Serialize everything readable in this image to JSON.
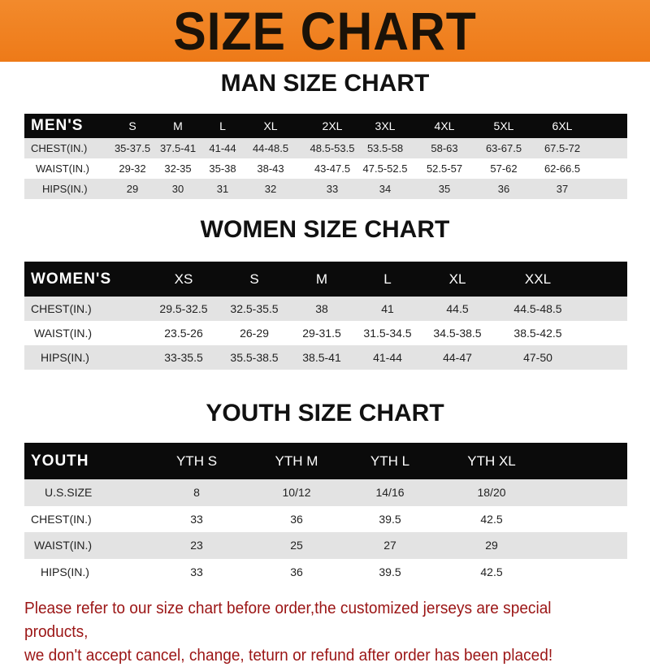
{
  "banner": {
    "title": "SIZE CHART",
    "color": "#ef801f"
  },
  "men": {
    "title": "MAN SIZE CHART",
    "header": "MEN'S",
    "sizes": [
      "S",
      "M",
      "L",
      "XL",
      "2XL",
      "3XL",
      "4XL",
      "5XL",
      "6XL"
    ],
    "rows": [
      {
        "label": "CHEST(IN.)",
        "values": [
          "35-37.5",
          "37.5-41",
          "41-44",
          "44-48.5",
          "48.5-53.5",
          "53.5-58",
          "58-63",
          "63-67.5",
          "67.5-72"
        ]
      },
      {
        "label": "WAIST(IN.)",
        "values": [
          "29-32",
          "32-35",
          "35-38",
          "38-43",
          "43-47.5",
          "47.5-52.5",
          "52.5-57",
          "57-62",
          "62-66.5"
        ]
      },
      {
        "label": "HIPS(IN.)",
        "values": [
          "29",
          "30",
          "31",
          "32",
          "33",
          "34",
          "35",
          "36",
          "37"
        ]
      }
    ]
  },
  "women": {
    "title": "WOMEN SIZE CHART",
    "header": "WOMEN'S",
    "sizes": [
      "XS",
      "S",
      "M",
      "L",
      "XL",
      "XXL"
    ],
    "rows": [
      {
        "label": "CHEST(IN.)",
        "values": [
          "29.5-32.5",
          "32.5-35.5",
          "38",
          "41",
          "44.5",
          "44.5-48.5"
        ]
      },
      {
        "label": "WAIST(IN.)",
        "values": [
          "23.5-26",
          "26-29",
          "29-31.5",
          "31.5-34.5",
          "34.5-38.5",
          "38.5-42.5"
        ]
      },
      {
        "label": "HIPS(IN.)",
        "values": [
          "33-35.5",
          "35.5-38.5",
          "38.5-41",
          "41-44",
          "44-47",
          "47-50"
        ]
      }
    ]
  },
  "youth": {
    "title": "YOUTH SIZE CHART",
    "header": "YOUTH",
    "sizes": [
      "YTH S",
      "YTH M",
      "YTH L",
      "YTH XL"
    ],
    "rows": [
      {
        "label": "U.S.SIZE",
        "values": [
          "8",
          "10/12",
          "14/16",
          "18/20"
        ]
      },
      {
        "label": "CHEST(IN.)",
        "values": [
          "33",
          "36",
          "39.5",
          "42.5"
        ]
      },
      {
        "label": "WAIST(IN.)",
        "values": [
          "23",
          "25",
          "27",
          "29"
        ]
      },
      {
        "label": "HIPS(IN.)",
        "values": [
          "33",
          "36",
          "39.5",
          "42.5"
        ]
      }
    ]
  },
  "note": {
    "line1": "Please refer to our size chart before order,the customized jerseys are special products,",
    "line2": "we don't accept cancel, change, teturn or refund after order has been placed!",
    "color": "#9b1515"
  }
}
